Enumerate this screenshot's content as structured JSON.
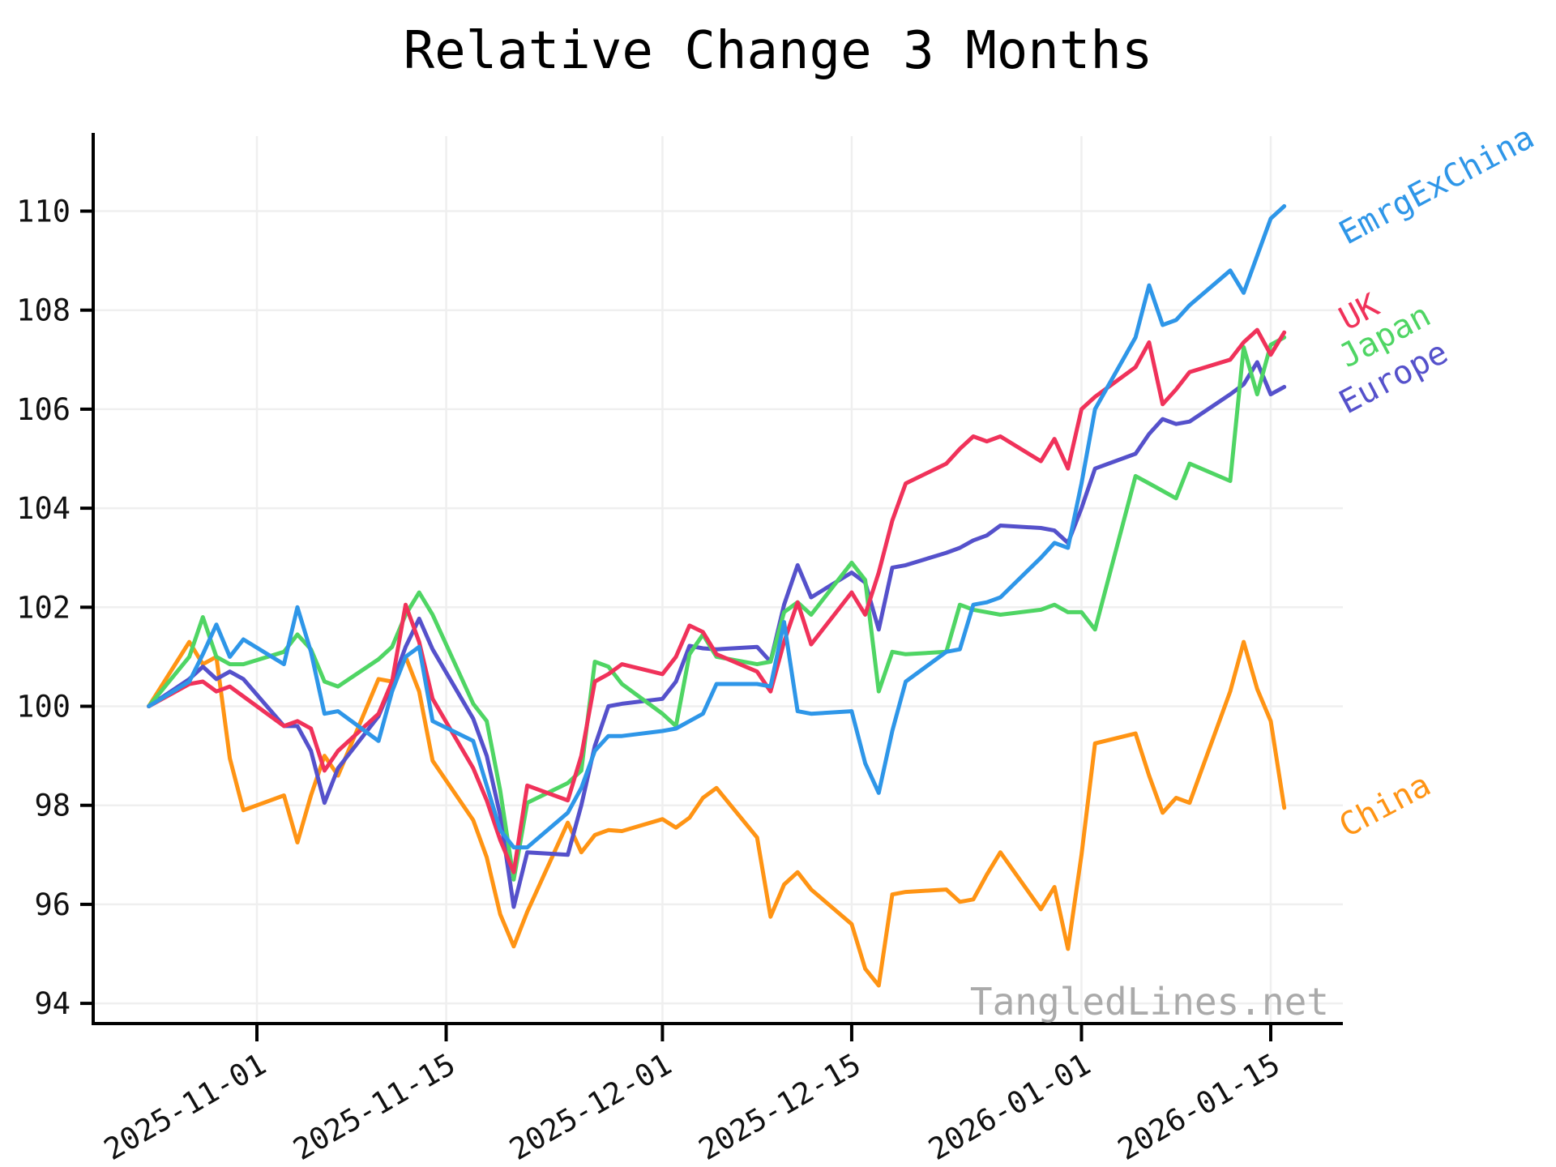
{
  "title": "Relative Change 3 Months",
  "watermark": "TangledLines.net",
  "chart_data": {
    "type": "line",
    "title": "Relative Change 3 Months",
    "xlabel": "",
    "ylabel": "",
    "grid": true,
    "ylim": [
      93.6,
      111.5
    ],
    "yticks": [
      94,
      96,
      98,
      100,
      102,
      104,
      106,
      108,
      110
    ],
    "xticks": [
      "2025-11-01",
      "2025-11-15",
      "2025-12-01",
      "2025-12-15",
      "2026-01-01",
      "2026-01-15"
    ],
    "legend_position": "end-of-line-right",
    "x": [
      "2025-10-24",
      "2025-10-27",
      "2025-10-28",
      "2025-10-29",
      "2025-10-30",
      "2025-10-31",
      "2025-11-03",
      "2025-11-04",
      "2025-11-05",
      "2025-11-06",
      "2025-11-07",
      "2025-11-10",
      "2025-11-11",
      "2025-11-12",
      "2025-11-13",
      "2025-11-14",
      "2025-11-17",
      "2025-11-18",
      "2025-11-19",
      "2025-11-20",
      "2025-11-21",
      "2025-11-24",
      "2025-11-25",
      "2025-11-26",
      "2025-11-27",
      "2025-11-28",
      "2025-12-01",
      "2025-12-02",
      "2025-12-03",
      "2025-12-04",
      "2025-12-05",
      "2025-12-08",
      "2025-12-09",
      "2025-12-10",
      "2025-12-11",
      "2025-12-12",
      "2025-12-15",
      "2025-12-16",
      "2025-12-17",
      "2025-12-18",
      "2025-12-19",
      "2025-12-22",
      "2025-12-23",
      "2025-12-24",
      "2025-12-25",
      "2025-12-26",
      "2025-12-29",
      "2025-12-30",
      "2025-12-31",
      "2026-01-01",
      "2026-01-02",
      "2026-01-05",
      "2026-01-06",
      "2026-01-07",
      "2026-01-08",
      "2026-01-09",
      "2026-01-12",
      "2026-01-13",
      "2026-01-14",
      "2026-01-15",
      "2026-01-16"
    ],
    "series": [
      {
        "name": "China",
        "color": "#FF9414",
        "values": [
          100.0,
          101.3,
          100.85,
          101.0,
          98.95,
          97.9,
          98.2,
          97.25,
          98.2,
          99.0,
          98.6,
          100.55,
          100.5,
          101.0,
          100.3,
          98.9,
          97.7,
          96.95,
          95.8,
          95.15,
          95.85,
          97.65,
          97.05,
          97.4,
          97.5,
          97.48,
          97.72,
          97.55,
          97.75,
          98.15,
          98.35,
          97.35,
          95.75,
          96.4,
          96.65,
          96.3,
          95.6,
          94.7,
          94.36,
          96.2,
          96.25,
          96.3,
          96.05,
          96.1,
          96.6,
          97.05,
          95.9,
          96.35,
          95.1,
          97.0,
          99.25,
          99.45,
          98.6,
          97.85,
          98.15,
          98.05,
          100.3,
          101.3,
          100.35,
          99.7,
          97.95
        ]
      },
      {
        "name": "Europe",
        "color": "#5551CB",
        "values": [
          100.0,
          100.55,
          100.8,
          100.55,
          100.7,
          100.55,
          99.6,
          99.6,
          99.1,
          98.05,
          98.75,
          99.8,
          100.45,
          101.2,
          101.77,
          101.15,
          99.75,
          99.0,
          97.8,
          95.95,
          97.05,
          97.0,
          98.0,
          99.2,
          100.0,
          100.05,
          100.15,
          100.5,
          101.22,
          101.17,
          101.15,
          101.2,
          100.9,
          102.05,
          102.85,
          102.2,
          102.7,
          102.5,
          101.55,
          102.8,
          102.85,
          103.1,
          103.2,
          103.35,
          103.45,
          103.65,
          103.6,
          103.55,
          103.3,
          104.0,
          104.8,
          105.1,
          105.5,
          105.8,
          105.7,
          105.75,
          106.3,
          106.5,
          106.95,
          106.3,
          106.45
        ]
      },
      {
        "name": "Japan",
        "color": "#4FD564",
        "values": [
          100.0,
          101.0,
          101.8,
          101.0,
          100.85,
          100.85,
          101.1,
          101.45,
          101.15,
          100.5,
          100.4,
          100.95,
          101.2,
          101.85,
          102.3,
          101.85,
          100.05,
          99.7,
          98.3,
          96.5,
          98.05,
          98.45,
          98.7,
          100.9,
          100.8,
          100.45,
          99.85,
          99.6,
          101.05,
          101.45,
          101.0,
          100.85,
          100.9,
          101.9,
          102.1,
          101.85,
          102.9,
          102.55,
          100.3,
          101.1,
          101.05,
          101.1,
          102.05,
          101.95,
          101.9,
          101.85,
          101.95,
          102.05,
          101.9,
          101.9,
          101.55,
          104.65,
          104.5,
          104.35,
          104.2,
          104.9,
          104.55,
          107.25,
          106.3,
          107.3,
          107.45
        ]
      },
      {
        "name": "UK",
        "color": "#F0325A",
        "values": [
          100.0,
          100.45,
          100.5,
          100.3,
          100.4,
          100.2,
          99.6,
          99.7,
          99.55,
          98.7,
          99.1,
          99.85,
          100.5,
          102.05,
          101.3,
          100.15,
          98.75,
          98.1,
          97.3,
          96.65,
          98.4,
          98.1,
          99.0,
          100.5,
          100.65,
          100.85,
          100.65,
          101.0,
          101.63,
          101.5,
          101.05,
          100.7,
          100.3,
          101.3,
          102.1,
          101.25,
          102.3,
          101.85,
          102.7,
          103.75,
          104.5,
          104.9,
          105.2,
          105.45,
          105.35,
          105.45,
          104.95,
          105.4,
          104.8,
          106.0,
          106.25,
          106.85,
          107.35,
          106.1,
          106.4,
          106.75,
          107.0,
          107.35,
          107.6,
          107.1,
          107.55
        ]
      },
      {
        "name": "EmrgExChina",
        "color": "#2E96E8",
        "values": [
          100.0,
          100.5,
          101.05,
          101.65,
          101.0,
          101.35,
          100.85,
          102.0,
          101.1,
          99.85,
          99.9,
          99.3,
          100.3,
          101.0,
          101.2,
          99.7,
          99.3,
          98.4,
          97.5,
          97.15,
          97.15,
          97.85,
          98.35,
          99.1,
          99.4,
          99.4,
          99.5,
          99.55,
          99.7,
          99.85,
          100.45,
          100.45,
          100.4,
          101.7,
          99.9,
          99.85,
          99.9,
          98.85,
          98.25,
          99.5,
          100.5,
          101.1,
          101.15,
          102.05,
          102.1,
          102.2,
          103.0,
          103.3,
          103.2,
          104.5,
          106.0,
          107.45,
          108.5,
          107.7,
          107.8,
          108.1,
          108.8,
          108.35,
          109.1,
          109.85,
          110.1
        ]
      }
    ]
  },
  "colors": {
    "grid": "#EFEFEF",
    "axis": "#000000",
    "tick_label": "#111111",
    "watermark": "#AAAAAA"
  }
}
